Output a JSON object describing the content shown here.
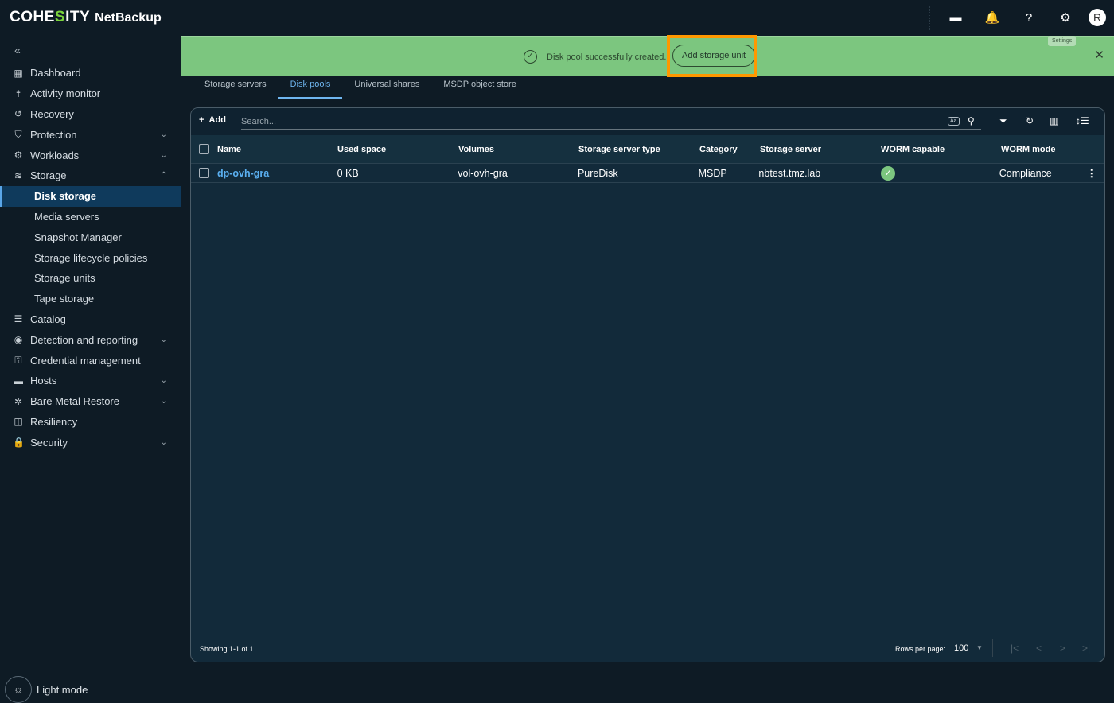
{
  "header": {
    "brand_pre": "COHE",
    "brand_s": "S",
    "brand_post": "ITY",
    "product": "NetBackup",
    "avatar": "R",
    "icons": [
      "ticket-icon",
      "bell-icon",
      "help-icon",
      "gear-icon"
    ],
    "tooltip": "Settings"
  },
  "sidebar": {
    "items": [
      {
        "label": "Dashboard",
        "icon": "▦"
      },
      {
        "label": "Activity monitor",
        "icon": "☨"
      },
      {
        "label": "Recovery",
        "icon": "↺"
      },
      {
        "label": "Protection",
        "icon": "⛉",
        "chev": "⌄"
      },
      {
        "label": "Workloads",
        "icon": "⚙",
        "chev": "⌄"
      },
      {
        "label": "Storage",
        "icon": "≋",
        "chev": "⌃"
      },
      {
        "label": "Disk storage",
        "sub": true,
        "active": true
      },
      {
        "label": "Media servers",
        "sub": true
      },
      {
        "label": "Snapshot Manager",
        "sub": true
      },
      {
        "label": "Storage lifecycle policies",
        "sub": true
      },
      {
        "label": "Storage units",
        "sub": true
      },
      {
        "label": "Tape storage",
        "sub": true
      },
      {
        "label": "Catalog",
        "icon": "☰"
      },
      {
        "label": "Detection and reporting",
        "icon": "◉",
        "chev": "⌄"
      },
      {
        "label": "Credential management",
        "icon": "⚿"
      },
      {
        "label": "Hosts",
        "icon": "▬",
        "chev": "⌄"
      },
      {
        "label": "Bare Metal Restore",
        "icon": "✲",
        "chev": "⌄"
      },
      {
        "label": "Resiliency",
        "icon": "◫"
      },
      {
        "label": "Security",
        "icon": "🔒",
        "chev": "⌄"
      }
    ],
    "light_mode": "Light mode"
  },
  "banner": {
    "message": "Disk pool successfully created.",
    "action": "Add storage unit",
    "color": "#7cc67f"
  },
  "tabs": [
    "Storage servers",
    "Disk pools",
    "Universal shares",
    "MSDP object store"
  ],
  "toolbar": {
    "add": "Add",
    "search_placeholder": "Search...",
    "case_label": "Aa"
  },
  "table": {
    "headers": [
      "Name",
      "Used space",
      "Volumes",
      "Storage server type",
      "Category",
      "Storage server",
      "WORM capable",
      "WORM mode"
    ],
    "rows": [
      {
        "name": "dp-ovh-gra",
        "used": "0 KB",
        "volumes": "vol-ovh-gra",
        "type": "PureDisk",
        "category": "MSDP",
        "server": "nbtest.tmz.lab",
        "worm_capable": true,
        "worm_mode": "Compliance"
      }
    ]
  },
  "footer": {
    "showing": "Showing 1-1 of 1",
    "rows_per_page_label": "Rows per page:",
    "rows_per_page": "100"
  }
}
